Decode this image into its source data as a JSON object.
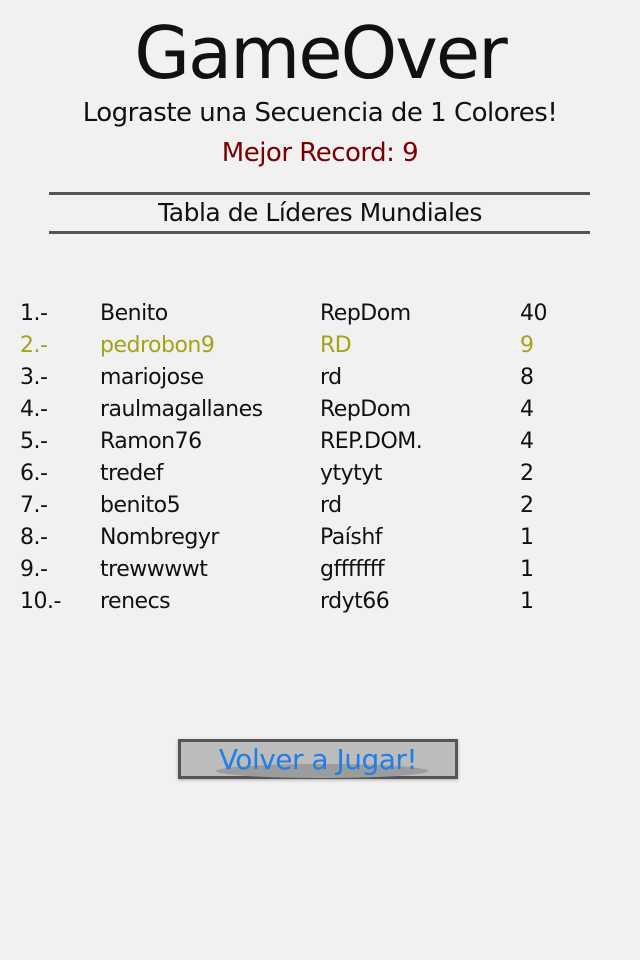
{
  "title": "GameOver",
  "subtitle": "Lograste una Secuencia de 1 Colores!",
  "best_record": "Mejor Record: 9",
  "leaderboard": {
    "title": "Tabla de Líderes Mundiales",
    "rows": [
      {
        "rank": "1.-",
        "name": "Benito",
        "country": "RepDom",
        "score": "40"
      },
      {
        "rank": "2.-",
        "name": "pedrobon9",
        "country": "RD",
        "score": "9"
      },
      {
        "rank": "3.-",
        "name": "mariojose",
        "country": "rd",
        "score": "8"
      },
      {
        "rank": "4.-",
        "name": "raulmagallanes",
        "country": "RepDom",
        "score": "4"
      },
      {
        "rank": "5.-",
        "name": "Ramon76",
        "country": "REP.DOM.",
        "score": "4"
      },
      {
        "rank": "6.-",
        "name": "tredef",
        "country": "ytytyt",
        "score": "2"
      },
      {
        "rank": "7.-",
        "name": "benito5",
        "country": "rd",
        "score": "2"
      },
      {
        "rank": "8.-",
        "name": "Nombregyr",
        "country": "Paíshf",
        "score": "1"
      },
      {
        "rank": "9.-",
        "name": "trewwwwt",
        "country": "gfffffff",
        "score": "1"
      },
      {
        "rank": "10.-",
        "name": "renecs",
        "country": "rdyt66",
        "score": "1"
      }
    ],
    "highlight_color": "#a3a317"
  },
  "play_again_label": "Volver a Jugar!",
  "colors": {
    "record": "#7a0000",
    "button_text": "#1f7ee8"
  }
}
